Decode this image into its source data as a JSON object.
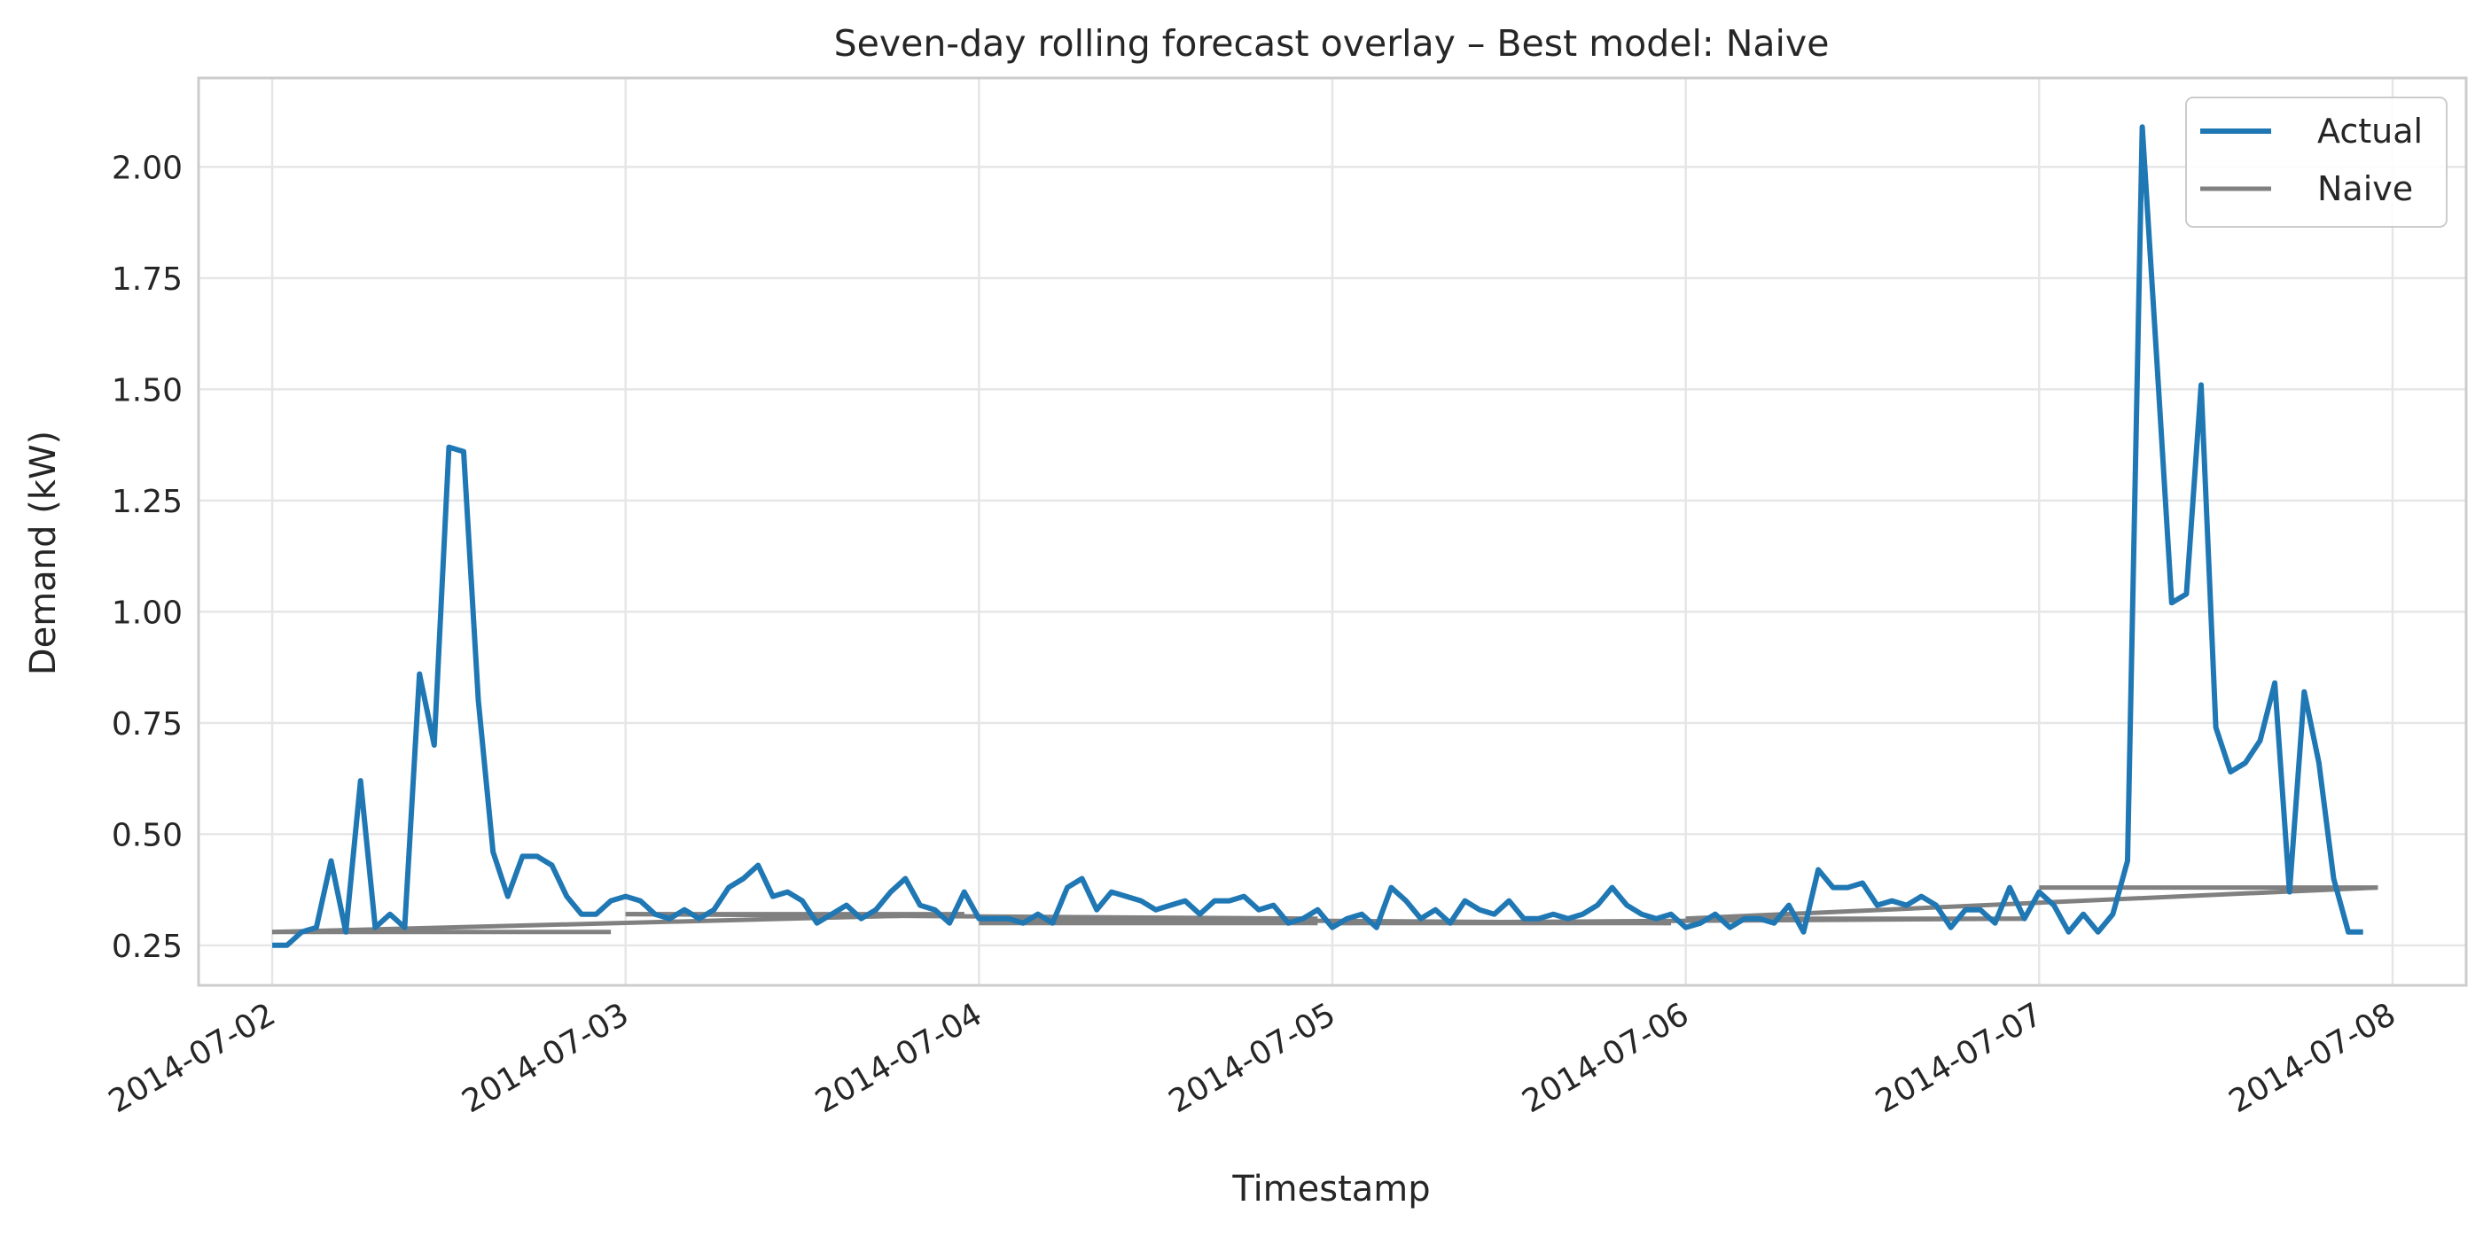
{
  "chart_data": {
    "type": "line",
    "title": "Seven-day rolling forecast overlay – Best model: Naive",
    "xlabel": "Timestamp",
    "ylabel": "Demand (kW)",
    "x_ticks": [
      "2014-07-02",
      "2014-07-03",
      "2014-07-04",
      "2014-07-05",
      "2014-07-06",
      "2014-07-07",
      "2014-07-08"
    ],
    "y_ticks": [
      "0.25",
      "0.50",
      "0.75",
      "1.00",
      "1.25",
      "1.50",
      "1.75",
      "2.00"
    ],
    "xlim": [
      "2014-07-01 19:00",
      "2014-07-08 05:00"
    ],
    "ylim": [
      0.16,
      2.2
    ],
    "grid": true,
    "legend_position": "top-right",
    "colors": {
      "actual": "#1f77b4",
      "naive": "#808080",
      "grid": "#e6e6e6",
      "frame": "#cccccc"
    },
    "series": [
      {
        "name": "Actual",
        "color": "#1f77b4",
        "x_start": "2014-07-02 00:00",
        "x_step_hours": 1,
        "values": [
          0.25,
          0.25,
          0.28,
          0.29,
          0.44,
          0.28,
          0.62,
          0.29,
          0.32,
          0.29,
          0.86,
          0.7,
          1.37,
          1.36,
          0.8,
          0.46,
          0.36,
          0.45,
          0.45,
          0.43,
          0.36,
          0.32,
          0.32,
          0.35,
          0.36,
          0.35,
          0.32,
          0.31,
          0.33,
          0.31,
          0.33,
          0.38,
          0.4,
          0.43,
          0.36,
          0.37,
          0.35,
          0.3,
          0.32,
          0.34,
          0.31,
          0.33,
          0.37,
          0.4,
          0.34,
          0.33,
          0.3,
          0.37,
          0.31,
          0.31,
          0.31,
          0.3,
          0.32,
          0.3,
          0.38,
          0.4,
          0.33,
          0.37,
          0.36,
          0.35,
          0.33,
          0.34,
          0.35,
          0.32,
          0.35,
          0.35,
          0.36,
          0.33,
          0.34,
          0.3,
          0.31,
          0.33,
          0.29,
          0.31,
          0.32,
          0.29,
          0.38,
          0.35,
          0.31,
          0.33,
          0.3,
          0.35,
          0.33,
          0.32,
          0.35,
          0.31,
          0.31,
          0.32,
          0.31,
          0.32,
          0.34,
          0.38,
          0.34,
          0.32,
          0.31,
          0.32,
          0.29,
          0.3,
          0.32,
          0.29,
          0.31,
          0.31,
          0.3,
          0.34,
          0.28,
          0.42,
          0.38,
          0.38,
          0.39,
          0.34,
          0.35,
          0.34,
          0.36,
          0.34,
          0.29,
          0.33,
          0.33,
          0.3,
          0.38,
          0.31,
          0.37,
          0.34,
          0.28,
          0.32,
          0.28,
          0.32,
          0.44,
          2.09,
          1.56,
          1.02,
          1.04,
          1.51,
          0.74,
          0.64,
          0.66,
          0.71,
          0.84,
          0.37,
          0.82,
          0.66,
          0.4,
          0.28,
          0.28
        ]
      },
      {
        "name": "Naive",
        "color": "#808080",
        "segments": [
          {
            "flat": {
              "x": [
                "2014-07-02 00:00",
                "2014-07-02 23:00"
              ],
              "y": 0.28
            },
            "trend": {
              "x": [
                "2014-07-02 00:00",
                "2014-07-03 23:00"
              ],
              "y": [
                0.28,
                0.32
              ]
            }
          },
          {
            "flat": {
              "x": [
                "2014-07-03 00:00",
                "2014-07-03 23:00"
              ],
              "y": 0.32
            },
            "trend": {
              "x": [
                "2014-07-03 00:00",
                "2014-07-04 23:00"
              ],
              "y": [
                0.32,
                0.31
              ]
            }
          },
          {
            "flat": {
              "x": [
                "2014-07-04 00:00",
                "2014-07-04 23:00"
              ],
              "y": 0.3
            },
            "trend": {
              "x": [
                "2014-07-04 00:00",
                "2014-07-05 23:00"
              ],
              "y": [
                0.31,
                0.3
              ]
            }
          },
          {
            "flat": {
              "x": [
                "2014-07-05 00:00",
                "2014-07-05 23:00"
              ],
              "y": 0.3
            },
            "trend": {
              "x": [
                "2014-07-05 00:00",
                "2014-07-06 23:00"
              ],
              "y": [
                0.3,
                0.31
              ]
            }
          },
          {
            "flat": {
              "x": [
                "2014-07-06 00:00",
                "2014-07-06 23:00"
              ],
              "y": 0.31
            },
            "trend": {
              "x": [
                "2014-07-06 00:00",
                "2014-07-07 23:00"
              ],
              "y": [
                0.31,
                0.38
              ]
            }
          },
          {
            "flat": {
              "x": [
                "2014-07-07 00:00",
                "2014-07-07 23:00"
              ],
              "y": 0.38
            },
            "trend": null
          }
        ]
      }
    ]
  }
}
